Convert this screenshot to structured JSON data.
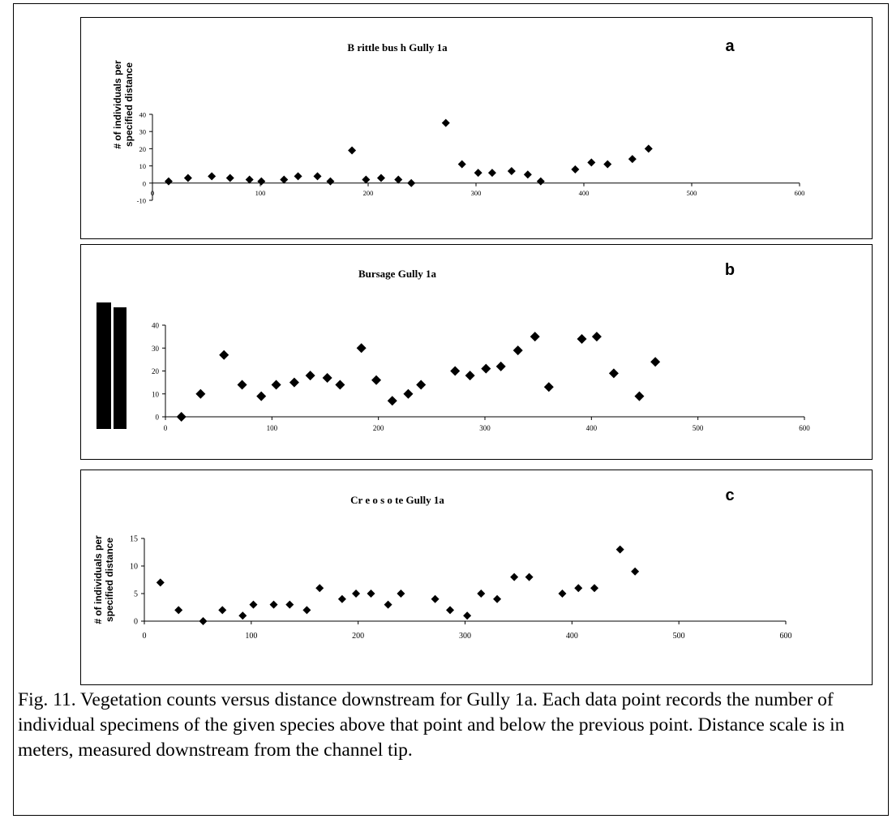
{
  "caption": "Fig. 11. Vegetation counts versus distance downstream for Gully 1a.  Each data point records the number of individual specimens of the given species above that point and below the previous point. Distance scale is in meters, measured downstream from the channel tip.",
  "chart_data": [
    {
      "type": "scatter",
      "title": "B rittle bus h Gully 1a",
      "panel_label": "a",
      "xlabel": "",
      "ylabel": "# of individuals per specified distance",
      "xlim": [
        0,
        600
      ],
      "ylim": [
        -10,
        40
      ],
      "xticks": [
        "0",
        "100",
        "200",
        "300",
        "400",
        "500",
        "600"
      ],
      "yticks": [
        "-10",
        "0",
        "10",
        "20",
        "30",
        "40"
      ],
      "marker": "diamond",
      "grid": false,
      "x": [
        15,
        33,
        55,
        72,
        90,
        101,
        122,
        135,
        153,
        165,
        185,
        198,
        212,
        228,
        240,
        272,
        287,
        302,
        315,
        333,
        348,
        360,
        392,
        407,
        422,
        445,
        460
      ],
      "y": [
        1,
        3,
        4,
        3,
        2,
        1,
        2,
        4,
        4,
        1,
        19,
        2,
        3,
        2,
        0,
        35,
        11,
        6,
        6,
        7,
        5,
        1,
        8,
        12,
        11,
        14,
        20
      ]
    },
    {
      "type": "scatter",
      "title": "Bursage Gully 1a",
      "panel_label": "b",
      "xlabel": "",
      "ylabel": "",
      "xlim": [
        0,
        600
      ],
      "ylim": [
        0,
        40
      ],
      "xticks": [
        "0",
        "100",
        "200",
        "300",
        "400",
        "500",
        "600"
      ],
      "yticks": [
        "0",
        "10",
        "20",
        "30",
        "40"
      ],
      "marker": "diamond",
      "grid": false,
      "x": [
        15,
        33,
        55,
        72,
        90,
        104,
        121,
        136,
        152,
        164,
        184,
        198,
        213,
        228,
        240,
        272,
        286,
        301,
        315,
        331,
        347,
        360,
        391,
        405,
        421,
        445,
        460
      ],
      "y": [
        0,
        10,
        27,
        14,
        9,
        14,
        15,
        18,
        17,
        14,
        30,
        16,
        7,
        10,
        14,
        20,
        18,
        21,
        22,
        29,
        35,
        13,
        34,
        35,
        19,
        9,
        24
      ]
    },
    {
      "type": "scatter",
      "title": "Cr e o s o te Gully 1a",
      "panel_label": "c",
      "xlabel": "",
      "ylabel": "# of individuals per specified distance",
      "xlim": [
        0,
        600
      ],
      "ylim": [
        0,
        15
      ],
      "xticks": [
        "0",
        "100",
        "200",
        "300",
        "400",
        "500",
        "600"
      ],
      "yticks": [
        "0",
        "5",
        "10",
        "15"
      ],
      "marker": "diamond",
      "grid": false,
      "x": [
        15,
        32,
        55,
        73,
        92,
        102,
        121,
        136,
        152,
        164,
        185,
        198,
        212,
        228,
        240,
        272,
        286,
        302,
        315,
        330,
        346,
        360,
        391,
        406,
        421,
        445,
        459
      ],
      "y": [
        7,
        2,
        0,
        2,
        1,
        3,
        3,
        3,
        2,
        6,
        4,
        5,
        5,
        3,
        5,
        4,
        2,
        1,
        5,
        4,
        8,
        8,
        5,
        6,
        6,
        13,
        9
      ]
    }
  ]
}
